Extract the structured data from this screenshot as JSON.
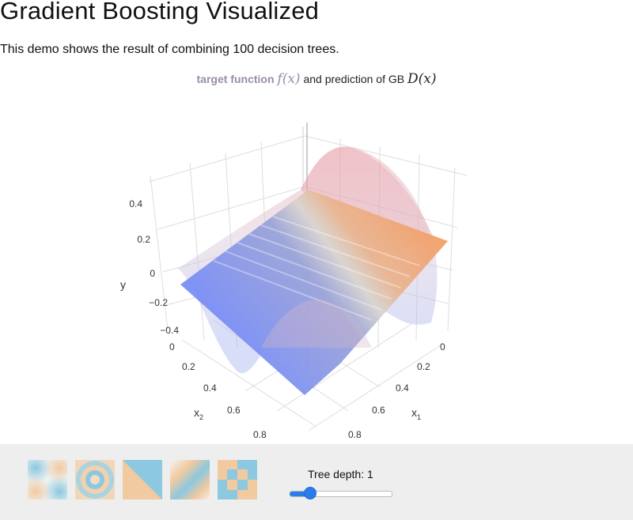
{
  "page": {
    "title": "Gradient Boosting Visualized",
    "description": "This demo shows the result of combining 100 decision trees."
  },
  "plot": {
    "title_target": "target function",
    "title_target_math": "f(x)",
    "title_middle": "and prediction of GB",
    "title_pred_math": "D(x)",
    "y_axis_label": "y",
    "x1_axis_label": "x",
    "x1_axis_subscript": "1",
    "x2_axis_label": "x",
    "x2_axis_subscript": "2",
    "target_color": "#e8a0a8",
    "prediction_colors": [
      "#7b8ff5",
      "#d6d6d6",
      "#f2a06a"
    ]
  },
  "chart_data": {
    "type": "surface3d",
    "y_ticks": [
      "0.4",
      "0.2",
      "0",
      "−0.2",
      "−0.4"
    ],
    "x1_ticks": [
      "0",
      "0.2",
      "0.4",
      "0.6",
      "0.8"
    ],
    "x2_ticks": [
      "0",
      "0.2",
      "0.4",
      "0.6",
      "0.8"
    ],
    "y_range": [
      -0.45,
      0.45
    ],
    "x1_range": [
      0,
      1
    ],
    "x2_range": [
      0,
      1
    ]
  },
  "controls": {
    "depth_label": "Tree depth: 1",
    "depth_value": 1,
    "depth_min": 1,
    "depth_max": 6,
    "dataset_thumbnails": [
      {
        "name": "soft-cross"
      },
      {
        "name": "rings"
      },
      {
        "name": "diagonal-split"
      },
      {
        "name": "soft-diagonal-blob"
      },
      {
        "name": "checkerboard"
      }
    ]
  }
}
